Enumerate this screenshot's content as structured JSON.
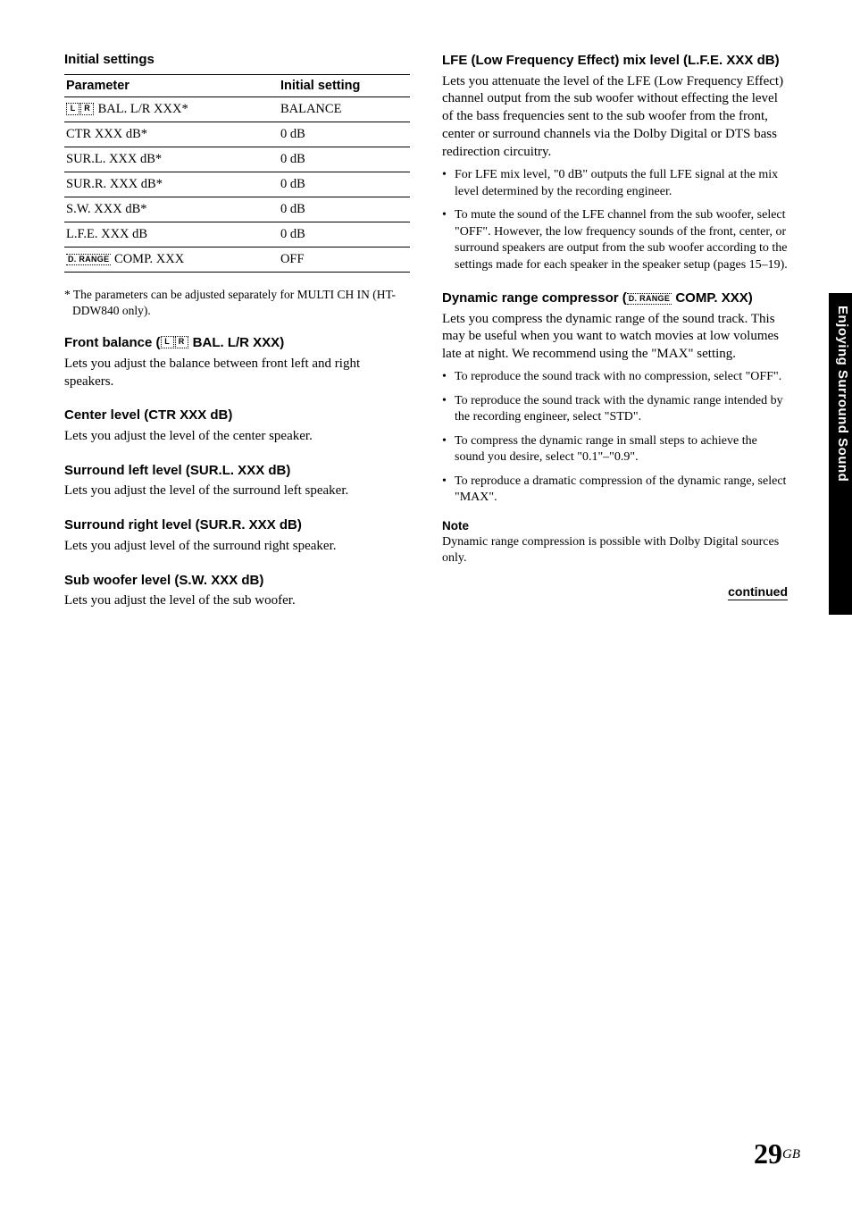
{
  "left": {
    "initial_settings_title": "Initial settings",
    "table": {
      "headers": [
        "Parameter",
        "Initial setting"
      ],
      "rows": [
        {
          "param_prefix_icons": [
            "L",
            "R"
          ],
          "param_text": " BAL. L/R XXX*",
          "value": "BALANCE"
        },
        {
          "param_text": "CTR XXX dB*",
          "value": "0 dB"
        },
        {
          "param_text": "SUR.L. XXX dB*",
          "value": "0 dB"
        },
        {
          "param_text": "SUR.R. XXX dB*",
          "value": "0 dB"
        },
        {
          "param_text": "S.W. XXX dB*",
          "value": "0 dB"
        },
        {
          "param_text": "L.F.E. XXX dB",
          "value": "0 dB"
        },
        {
          "drange": "D. RANGE",
          "param_text": " COMP. XXX",
          "value": "OFF"
        }
      ]
    },
    "footnote": "* The parameters can be adjusted separately for MULTI CH IN (HT-DDW840 only).",
    "sections": [
      {
        "title_pre": "Front balance (",
        "title_icons": [
          "L",
          "R"
        ],
        "title_post": " BAL. L/R XXX)",
        "body": "Lets you adjust the balance between front left and right speakers."
      },
      {
        "title": "Center level (CTR XXX dB)",
        "body": "Lets you adjust the level of the center speaker."
      },
      {
        "title": "Surround left level (SUR.L. XXX dB)",
        "body": "Lets you adjust the level of the surround left speaker."
      },
      {
        "title": "Surround right level (SUR.R. XXX dB)",
        "body": "Lets you adjust level of the surround right speaker."
      },
      {
        "title": "Sub woofer level (S.W. XXX dB)",
        "body": "Lets you adjust the level of the sub woofer."
      }
    ]
  },
  "right": {
    "lfe": {
      "title": "LFE (Low Frequency Effect) mix level (L.F.E. XXX dB)",
      "body": "Lets you attenuate the level of the LFE (Low Frequency Effect) channel output from the sub woofer without effecting the level of the bass frequencies sent to the sub woofer from the front, center or surround channels via the Dolby Digital or DTS bass redirection circuitry.",
      "bullets": [
        "For LFE mix level, \"0 dB\" outputs the full LFE signal at the mix level determined by the recording engineer.",
        "To mute the sound of the LFE channel from the sub woofer, select \"OFF\". However, the low frequency sounds of the front, center, or surround speakers are output from the sub woofer according to the settings made for each speaker in the speaker setup (pages 15–19)."
      ]
    },
    "drc": {
      "title_pre": "Dynamic range compressor (",
      "drange": "D. RANGE",
      "title_post": " COMP. XXX)",
      "body": "Lets you compress the dynamic range of the sound track. This may be useful when you want to watch movies at low volumes late at night. We recommend using the \"MAX\" setting.",
      "bullets": [
        "To reproduce the sound track with no compression, select \"OFF\".",
        "To reproduce the sound track with the dynamic range intended by the recording engineer, select \"STD\".",
        "To compress the dynamic range in small steps to achieve the sound you desire, select \"0.1\"–\"0.9\".",
        "To reproduce a dramatic compression of the dynamic range, select \"MAX\"."
      ]
    },
    "note_title": "Note",
    "note_body": "Dynamic range compression is possible with Dolby Digital sources only.",
    "continued": "continued"
  },
  "side_tab": "Enjoying Surround Sound",
  "page_number": "29",
  "page_suffix": "GB"
}
